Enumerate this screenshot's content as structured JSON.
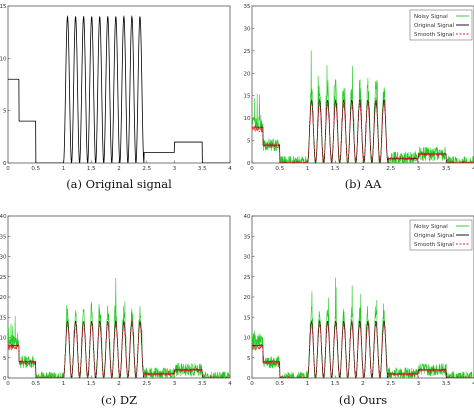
{
  "chart_data": [
    {
      "id": "a",
      "type": "line",
      "caption": "(a)  Original signal",
      "xlim": [
        0,
        4
      ],
      "ylim": [
        0,
        15
      ],
      "xticks": [
        0,
        0.5,
        1,
        1.5,
        2,
        2.5,
        3,
        3.5,
        4
      ],
      "xtick_labels": [
        "0",
        "0.5",
        "1",
        "1.5",
        "2",
        "2.5",
        "3",
        "3.5",
        "4"
      ],
      "yticks": [
        0,
        5,
        10,
        15
      ],
      "ytick_labels": [
        "0",
        "5",
        "10",
        "15"
      ],
      "show_noisy": false,
      "show_smooth": false,
      "legend": null
    },
    {
      "id": "b",
      "type": "line",
      "caption": "(b)  AA",
      "xlim": [
        0,
        4
      ],
      "ylim": [
        0,
        35
      ],
      "xticks": [
        0,
        0.5,
        1,
        1.5,
        2,
        2.5,
        3,
        3.5,
        4
      ],
      "xtick_labels": [
        "0",
        "0.5",
        "1",
        "1.5",
        "2",
        "2.5",
        "3",
        "3.5",
        "4"
      ],
      "yticks": [
        0,
        5,
        10,
        15,
        20,
        25,
        30,
        35
      ],
      "ytick_labels": [
        "0",
        "5",
        "10",
        "15",
        "20",
        "25",
        "30",
        "35"
      ],
      "show_noisy": true,
      "show_smooth": true,
      "noise_amp": 0.55,
      "legend": {
        "position": "top-right",
        "entries": [
          {
            "label": "Noisy Signal",
            "color": "#22c922",
            "dash": "solid"
          },
          {
            "label": "Original Signal",
            "color": "#000000",
            "dash": "solid"
          },
          {
            "label": "Smooth Signal",
            "color": "#e0202a",
            "dash": "dashed"
          }
        ]
      }
    },
    {
      "id": "c",
      "type": "line",
      "caption": "(c)  DZ",
      "xlim": [
        0,
        4
      ],
      "ylim": [
        0,
        40
      ],
      "xticks": [
        0,
        0.5,
        1,
        1.5,
        2,
        2.5,
        3,
        3.5,
        4
      ],
      "xtick_labels": [
        "0",
        "0.5",
        "1",
        "1.5",
        "2",
        "2.5",
        "3",
        "3.5",
        "4"
      ],
      "yticks": [
        0,
        5,
        10,
        15,
        20,
        25,
        30,
        35,
        40
      ],
      "ytick_labels": [
        "0",
        "5",
        "10",
        "15",
        "20",
        "25",
        "30",
        "35",
        "40"
      ],
      "show_noisy": true,
      "show_smooth": true,
      "noise_amp": 0.5,
      "legend": null
    },
    {
      "id": "d",
      "type": "line",
      "caption": "(d)  Ours",
      "xlim": [
        0,
        4
      ],
      "ylim": [
        0,
        40
      ],
      "xticks": [
        0,
        0.5,
        1,
        1.5,
        2,
        2.5,
        3,
        3.5,
        4
      ],
      "xtick_labels": [
        "0",
        "0.5",
        "1",
        "1.5",
        "2",
        "2.5",
        "3",
        "3.5",
        "4"
      ],
      "yticks": [
        0,
        5,
        10,
        15,
        20,
        25,
        30,
        35,
        40
      ],
      "ytick_labels": [
        "0",
        "5",
        "10",
        "15",
        "20",
        "25",
        "30",
        "35",
        "40"
      ],
      "show_noisy": true,
      "show_smooth": true,
      "noise_amp": 0.5,
      "legend": {
        "position": "top-right",
        "entries": [
          {
            "label": "Noisy Signal",
            "color": "#22c922",
            "dash": "solid"
          },
          {
            "label": "Original Signal",
            "color": "#000000",
            "dash": "solid"
          },
          {
            "label": "Smooth Signal",
            "color": "#e0202a",
            "dash": "dashed"
          }
        ]
      }
    }
  ],
  "signal": {
    "segments": [
      {
        "from": 0.0,
        "to": 0.2,
        "level": 8
      },
      {
        "from": 0.2,
        "to": 0.5,
        "level": 4
      },
      {
        "from": 0.5,
        "to": 1.0,
        "level": 0
      },
      {
        "from": 2.45,
        "to": 3.0,
        "level": 1
      },
      {
        "from": 3.0,
        "to": 3.5,
        "level": 2
      },
      {
        "from": 3.5,
        "to": 4.0,
        "level": 0
      }
    ],
    "oscillation": {
      "from": 1.0,
      "to": 2.45,
      "amplitude": 14,
      "cycles": 10
    }
  },
  "colors": {
    "axis": "#555555",
    "noisy": "#22c922",
    "original": "#000000",
    "smooth": "#e0202a"
  }
}
